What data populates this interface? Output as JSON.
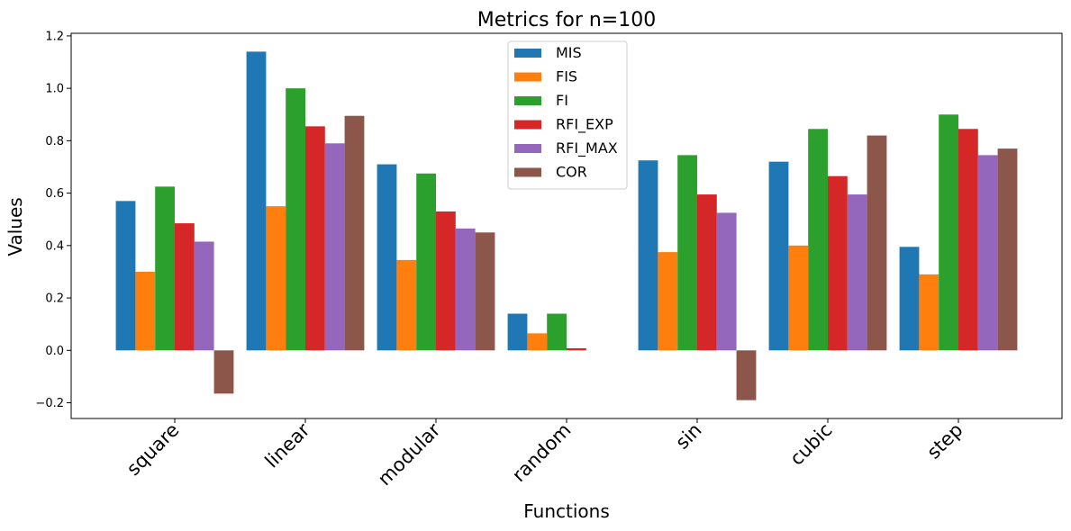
{
  "chart_data": {
    "type": "bar",
    "title": "Metrics for n=100",
    "xlabel": "Functions",
    "ylabel": "Values",
    "categories": [
      "square",
      "linear",
      "modular",
      "random",
      "sin",
      "cubic",
      "step"
    ],
    "ylim": [
      -0.26,
      1.21
    ],
    "yticks": [
      "-0.2",
      "0.0",
      "0.2",
      "0.4",
      "0.6",
      "0.8",
      "1.0",
      "1.2"
    ],
    "ytick_values": [
      -0.2,
      0.0,
      0.2,
      0.4,
      0.6,
      0.8,
      1.0,
      1.2
    ],
    "grid": false,
    "legend_position": "top-center",
    "series": [
      {
        "name": "MIS",
        "color": "#1f77b4",
        "values": [
          0.57,
          1.14,
          0.71,
          0.14,
          0.725,
          0.72,
          0.395
        ]
      },
      {
        "name": "FIS",
        "color": "#ff7f0e",
        "values": [
          0.3,
          0.55,
          0.345,
          0.065,
          0.375,
          0.4,
          0.29
        ]
      },
      {
        "name": "FI",
        "color": "#2ca02c",
        "values": [
          0.625,
          1.0,
          0.675,
          0.14,
          0.745,
          0.845,
          0.9
        ]
      },
      {
        "name": "RFI_EXP",
        "color": "#d62728",
        "values": [
          0.485,
          0.855,
          0.53,
          0.008,
          0.595,
          0.665,
          0.845
        ]
      },
      {
        "name": "RFI_MAX",
        "color": "#9467bd",
        "values": [
          0.415,
          0.79,
          0.465,
          0.0,
          0.525,
          0.595,
          0.745
        ]
      },
      {
        "name": "COR",
        "color": "#8c564b",
        "values": [
          -0.165,
          0.895,
          0.45,
          0.0,
          -0.19,
          0.82,
          0.77
        ]
      }
    ]
  }
}
